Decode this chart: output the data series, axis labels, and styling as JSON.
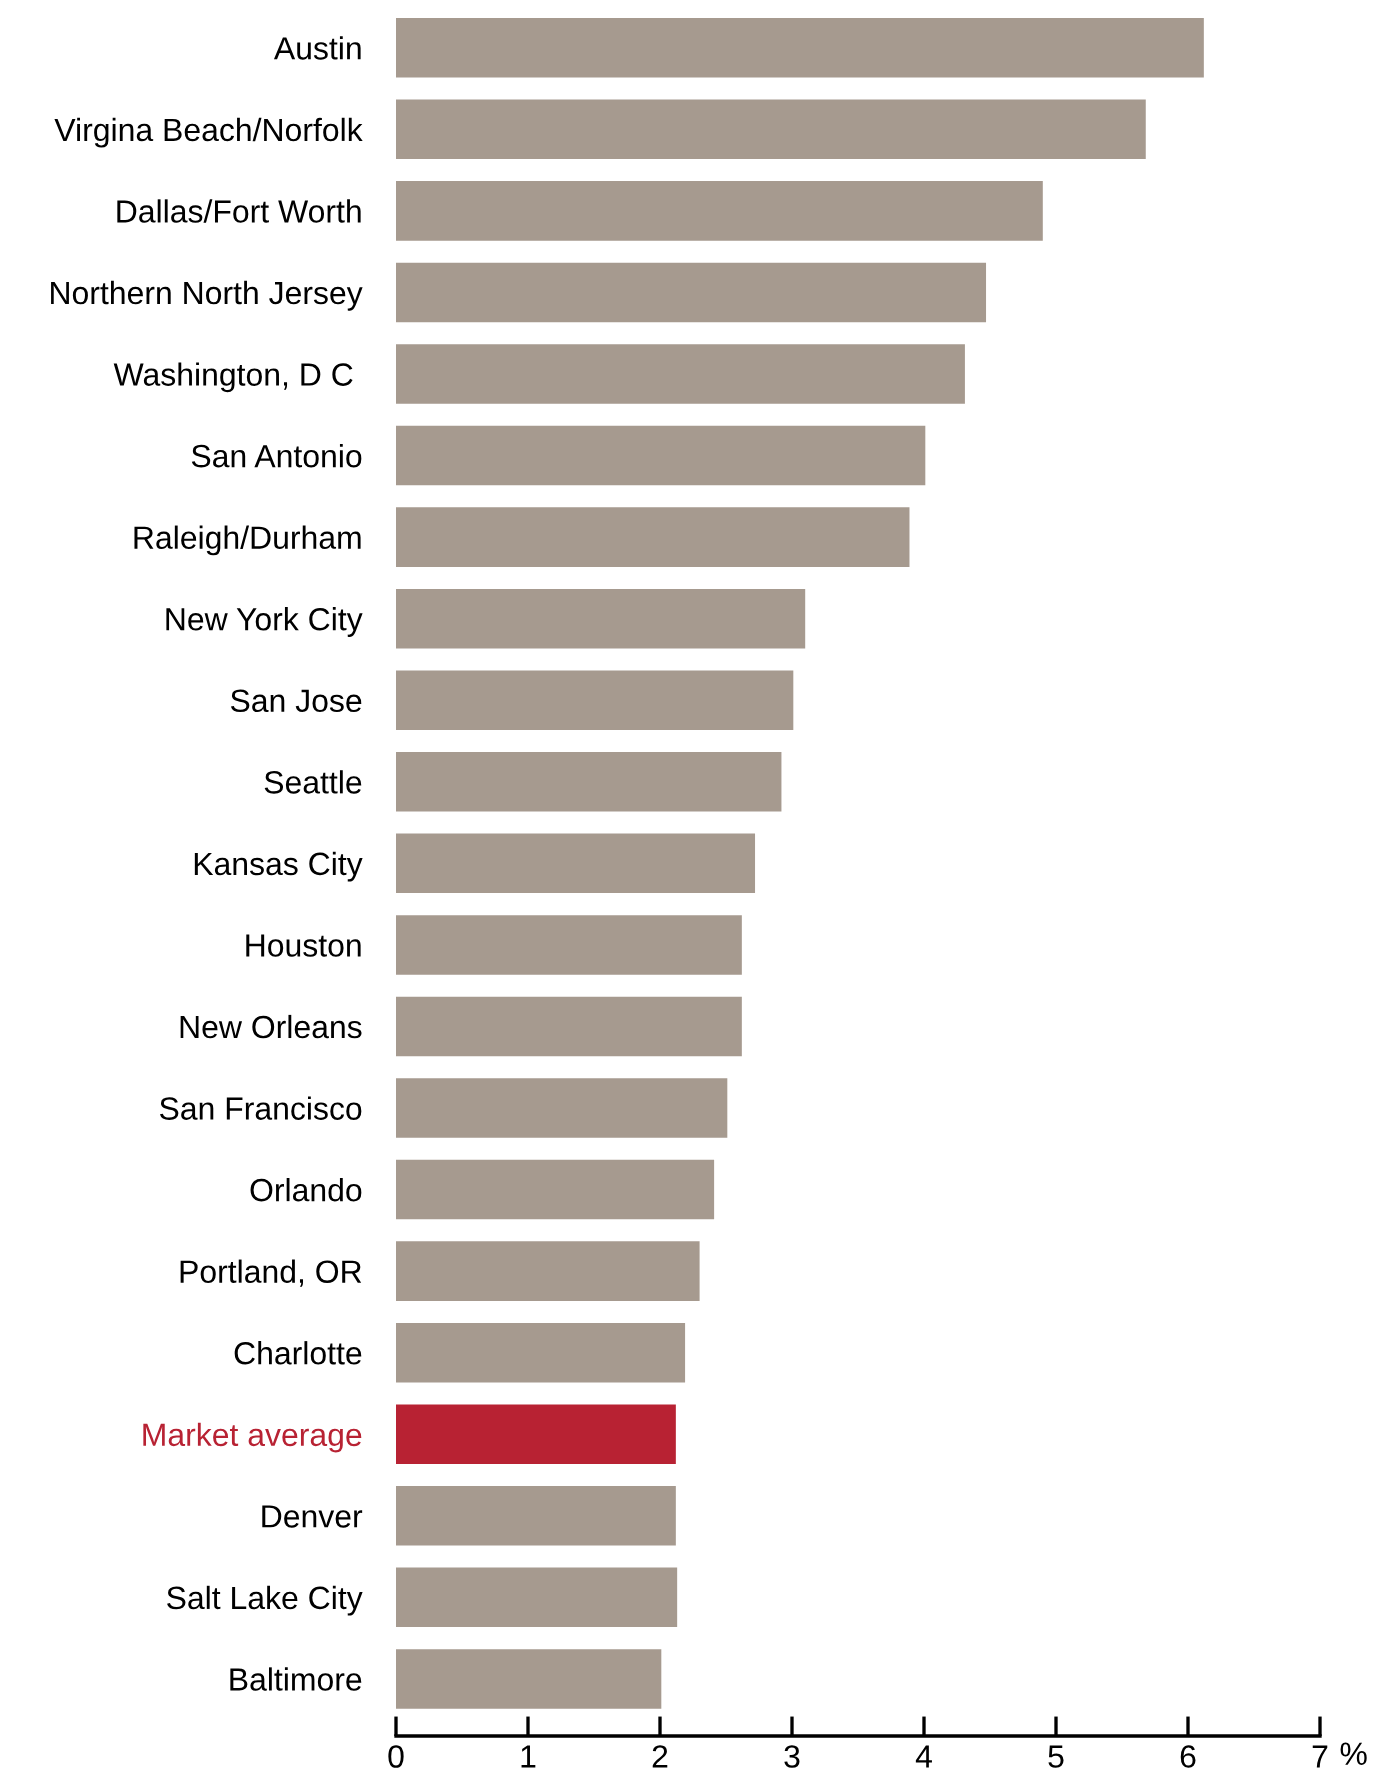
{
  "chart_data": {
    "type": "bar",
    "orientation": "horizontal",
    "xlabel": "%",
    "categories": [
      "Austin",
      "Virgina Beach/Norfolk",
      "Dallas/Fort Worth",
      "Northern North Jersey",
      "Washington, D C ",
      "San Antonio",
      "Raleigh/Durham",
      "New York City",
      "San Jose",
      "Seattle",
      "Kansas City",
      "Houston",
      "New Orleans",
      "San Francisco",
      "Orlando",
      "Portland, OR",
      "Charlotte",
      "Market average",
      "Denver",
      "Salt Lake City",
      "Baltimore"
    ],
    "values": [
      6.12,
      5.68,
      4.9,
      4.47,
      4.31,
      4.01,
      3.89,
      3.1,
      3.01,
      2.92,
      2.72,
      2.62,
      2.62,
      2.51,
      2.41,
      2.3,
      2.19,
      2.12,
      2.12,
      2.13,
      2.01
    ],
    "colors": [
      "#a69a8f",
      "#a69a8f",
      "#a69a8f",
      "#a69a8f",
      "#a69a8f",
      "#a69a8f",
      "#a69a8f",
      "#a69a8f",
      "#a69a8f",
      "#a69a8f",
      "#a69a8f",
      "#a69a8f",
      "#a69a8f",
      "#a69a8f",
      "#a69a8f",
      "#a69a8f",
      "#a69a8f",
      "#b82233",
      "#a69a8f",
      "#a69a8f",
      "#a69a8f"
    ],
    "xlim": [
      0,
      7
    ],
    "xticks": [
      0,
      1,
      2,
      3,
      4,
      5,
      6,
      7
    ],
    "grid": false,
    "legend": false
  }
}
